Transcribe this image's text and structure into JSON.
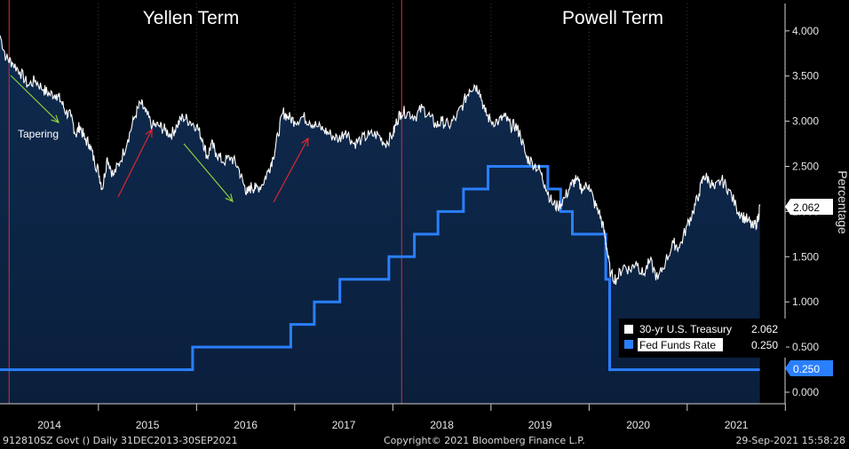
{
  "chart_data": {
    "type": "line",
    "ylabel": "Percentage",
    "ylim": [
      -0.05,
      4.3
    ],
    "yticks": [
      "4.000",
      "3.500",
      "3.000",
      "2.500",
      "2.000",
      "1.500",
      "1.000",
      "0.500",
      "0.000"
    ],
    "year_labels": [
      "2014",
      "2015",
      "2016",
      "2017",
      "2018",
      "2019",
      "2020",
      "2021"
    ],
    "annotations": {
      "yellen": "Yellen Term",
      "powell": "Powell Term",
      "tapering": "Tapering"
    },
    "legend_position": "bottom-right",
    "series": [
      {
        "name": "30-yr U.S. Treasury",
        "last_value": "2.062",
        "color": "#ffffff",
        "x": [
          2013.997,
          2014.06,
          2014.12,
          2014.2,
          2014.28,
          2014.36,
          2014.44,
          2014.5,
          2014.57,
          2014.62,
          2014.67,
          2014.72,
          2014.77,
          2014.81,
          2014.86,
          2014.91,
          2014.96,
          2015.0,
          2015.04,
          2015.09,
          2015.15,
          2015.22,
          2015.3,
          2015.37,
          2015.43,
          2015.48,
          2015.55,
          2015.62,
          2015.68,
          2015.74,
          2015.8,
          2015.86,
          2015.93,
          2016.0,
          2016.06,
          2016.11,
          2016.15,
          2016.2,
          2016.27,
          2016.35,
          2016.42,
          2016.48,
          2016.52,
          2016.56,
          2016.6,
          2016.67,
          2016.73,
          2016.78,
          2016.83,
          2016.88,
          2016.93,
          2017.0,
          2017.08,
          2017.15,
          2017.22,
          2017.3,
          2017.37,
          2017.45,
          2017.52,
          2017.6,
          2017.68,
          2017.76,
          2017.85,
          2017.92,
          2018.0,
          2018.04,
          2018.08,
          2018.15,
          2018.23,
          2018.3,
          2018.38,
          2018.44,
          2018.5,
          2018.57,
          2018.65,
          2018.72,
          2018.78,
          2018.83,
          2018.88,
          2018.94,
          2019.0,
          2019.08,
          2019.14,
          2019.2,
          2019.25,
          2019.3,
          2019.36,
          2019.42,
          2019.5,
          2019.55,
          2019.62,
          2019.68,
          2019.75,
          2019.82,
          2019.87,
          2019.93,
          2020.0,
          2020.05,
          2020.1,
          2020.15,
          2020.18,
          2020.22,
          2020.28,
          2020.35,
          2020.42,
          2020.48,
          2020.55,
          2020.62,
          2020.7,
          2020.78,
          2020.86,
          2020.92,
          2021.0,
          2021.06,
          2021.12,
          2021.17,
          2021.22,
          2021.28,
          2021.35,
          2021.42,
          2021.5,
          2021.56,
          2021.62,
          2021.67,
          2021.72,
          2021.74
        ],
        "y": [
          3.95,
          3.7,
          3.65,
          3.55,
          3.4,
          3.45,
          3.35,
          3.3,
          3.3,
          3.22,
          3.1,
          3.05,
          2.85,
          2.95,
          2.8,
          2.75,
          2.55,
          2.45,
          2.25,
          2.6,
          2.4,
          2.55,
          2.8,
          3.05,
          3.2,
          3.1,
          2.95,
          2.95,
          2.9,
          2.85,
          2.95,
          3.05,
          3.0,
          2.95,
          2.8,
          2.6,
          2.75,
          2.65,
          2.55,
          2.6,
          2.5,
          2.3,
          2.2,
          2.28,
          2.25,
          2.3,
          2.45,
          2.6,
          2.85,
          3.1,
          3.05,
          3.0,
          3.05,
          3.0,
          2.95,
          2.9,
          2.85,
          2.8,
          2.9,
          2.75,
          2.8,
          2.85,
          2.85,
          2.75,
          2.85,
          3.0,
          3.1,
          3.1,
          3.05,
          3.15,
          3.05,
          2.95,
          3.0,
          2.95,
          3.05,
          3.2,
          3.35,
          3.4,
          3.35,
          3.1,
          3.0,
          3.0,
          3.05,
          2.95,
          2.95,
          2.85,
          2.6,
          2.55,
          2.45,
          2.3,
          2.1,
          2.05,
          2.15,
          2.3,
          2.35,
          2.25,
          2.3,
          2.1,
          2.0,
          1.8,
          1.6,
          1.3,
          1.25,
          1.4,
          1.35,
          1.45,
          1.3,
          1.45,
          1.25,
          1.45,
          1.65,
          1.6,
          1.85,
          2.0,
          2.2,
          2.4,
          2.35,
          2.25,
          2.35,
          2.25,
          2.05,
          1.95,
          1.9,
          1.82,
          1.9,
          2.062
        ]
      },
      {
        "name": "Fed Funds Rate",
        "last_value": "0.250",
        "color": "#2a7fff",
        "x": [
          2013.997,
          2015.96,
          2016.96,
          2017.2,
          2017.46,
          2017.96,
          2018.22,
          2018.46,
          2018.72,
          2018.97,
          2019.58,
          2019.71,
          2019.83,
          2020.17,
          2020.21,
          2021.74
        ],
        "y": [
          0.25,
          0.5,
          0.75,
          1.0,
          1.25,
          1.5,
          1.75,
          2.0,
          2.25,
          2.5,
          2.25,
          2.0,
          1.75,
          1.25,
          0.25,
          0.25
        ]
      }
    ]
  },
  "footer": {
    "ticker": "912810SZ Govt ()  Daily 31DEC2013-30SEP2021",
    "copyright": "Copyright© 2021 Bloomberg Finance L.P.",
    "timestamp": "29-Sep-2021 15:58:28"
  }
}
